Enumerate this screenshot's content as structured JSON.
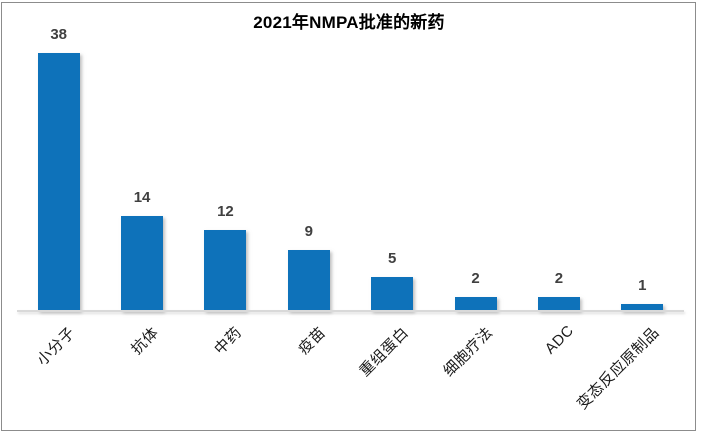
{
  "chart_data": {
    "type": "bar",
    "title": "2021年NMPA批准的新药",
    "categories": [
      "小分子",
      "抗体",
      "中药",
      "疫苗",
      "重组蛋白",
      "细胞疗法",
      "ADC",
      "变态反应原制品"
    ],
    "values": [
      38,
      14,
      12,
      9,
      5,
      2,
      2,
      1
    ],
    "data_labels_shown": true,
    "xlabel": "",
    "ylabel": "",
    "ylim": [
      0,
      40
    ],
    "grid": false,
    "legend": "none",
    "x_tick_label_rotation_deg": 45,
    "colors": {
      "bar": "#0e72ba",
      "value_label": "#404040",
      "category_label": "#1a1a1a",
      "axis_line": "#d9d9d9",
      "frame_border": "#8c8c8c",
      "background": "#ffffff",
      "title": "#000000"
    }
  }
}
